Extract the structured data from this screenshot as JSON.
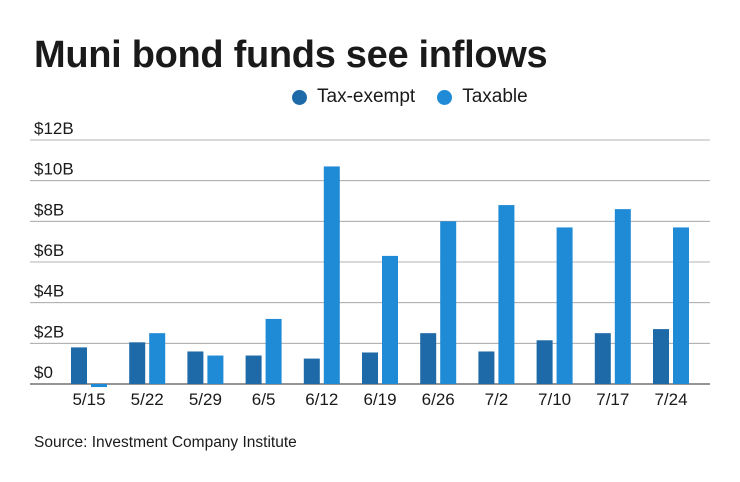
{
  "title": "Muni bond funds see inflows",
  "source": "Source: Investment Company Institute",
  "colors": {
    "tax_exempt": "#1e6aa8",
    "taxable": "#1f8ad6",
    "grid": "#9a9a9a",
    "text": "#1a1a1a"
  },
  "chart_data": {
    "type": "bar",
    "title": "Muni bond funds see inflows",
    "xlabel": "",
    "ylabel": "",
    "categories": [
      "5/15",
      "5/22",
      "5/29",
      "6/5",
      "6/12",
      "6/19",
      "6/26",
      "7/2",
      "7/10",
      "7/17",
      "7/24"
    ],
    "series": [
      {
        "name": "Tax-exempt",
        "values": [
          1.8,
          2.05,
          1.6,
          1.4,
          1.25,
          1.55,
          2.5,
          1.6,
          2.15,
          2.5,
          2.7
        ]
      },
      {
        "name": "Taxable",
        "values": [
          -0.15,
          2.5,
          1.4,
          3.2,
          10.7,
          6.3,
          8.0,
          8.8,
          7.7,
          8.6,
          7.7
        ]
      }
    ],
    "yticks": [
      "$0",
      "$2B",
      "$4B",
      "$6B",
      "$8B",
      "$10B",
      "$12B"
    ],
    "ylim": [
      0,
      12
    ],
    "grid": true,
    "legend": "top"
  }
}
